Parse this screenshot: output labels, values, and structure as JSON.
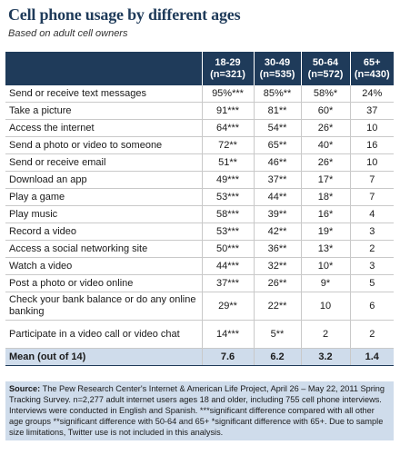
{
  "title": "Cell phone usage by different ages",
  "subtitle": "Based on adult cell owners",
  "columns": [
    {
      "range": "18-29",
      "n": "(n=321)"
    },
    {
      "range": "30-49",
      "n": "(n=535)"
    },
    {
      "range": "50-64",
      "n": "(n=572)"
    },
    {
      "range": "65+",
      "n": "(n=430)"
    }
  ],
  "rows": [
    {
      "label": "Send or receive text messages",
      "values": [
        "95%***",
        "85%**",
        "58%*",
        "24%"
      ]
    },
    {
      "label": "Take a picture",
      "values": [
        "91***",
        "81**",
        "60*",
        "37"
      ]
    },
    {
      "label": "Access the internet",
      "values": [
        "64***",
        "54**",
        "26*",
        "10"
      ]
    },
    {
      "label": "Send a photo or video to someone",
      "values": [
        "72**",
        "65**",
        "40*",
        "16"
      ]
    },
    {
      "label": "Send or receive email",
      "values": [
        "51**",
        "46**",
        "26*",
        "10"
      ]
    },
    {
      "label": "Download an app",
      "values": [
        "49***",
        "37**",
        "17*",
        "7"
      ]
    },
    {
      "label": "Play a game",
      "values": [
        "53***",
        "44**",
        "18*",
        "7"
      ]
    },
    {
      "label": "Play music",
      "values": [
        "58***",
        "39**",
        "16*",
        "4"
      ]
    },
    {
      "label": "Record a video",
      "values": [
        "53***",
        "42**",
        "19*",
        "3"
      ]
    },
    {
      "label": "Access a social networking site",
      "values": [
        "50***",
        "36**",
        "13*",
        "2"
      ]
    },
    {
      "label": "Watch a video",
      "values": [
        "44***",
        "32**",
        "10*",
        "3"
      ]
    },
    {
      "label": "Post a photo or video online",
      "values": [
        "37***",
        "26**",
        "9*",
        "5"
      ]
    },
    {
      "label": "Check your bank balance or do any online banking",
      "values": [
        "29**",
        "22**",
        "10",
        "6"
      ]
    },
    {
      "label": "Participate in a video call or video chat",
      "values": [
        "14***",
        "5**",
        "2",
        "2"
      ]
    }
  ],
  "mean": {
    "label": "Mean (out of 14)",
    "values": [
      "7.6",
      "6.2",
      "3.2",
      "1.4"
    ]
  },
  "source": {
    "label": "Source:",
    "text": "The Pew Research Center's Internet & American Life Project, April 26 – May 22, 2011 Spring Tracking Survey. n=2,277 adult internet users ages 18 and older, including 755 cell phone interviews. Interviews were conducted in English and Spanish.",
    "notes": "***significant difference compared with all other age groups **significant difference with 50-64 and 65+ *significant difference with 65+. Due to sample size limitations, Twitter use is not included in this analysis."
  },
  "colors": {
    "header": "#1f3b5a",
    "footer": "#cfdceb"
  }
}
